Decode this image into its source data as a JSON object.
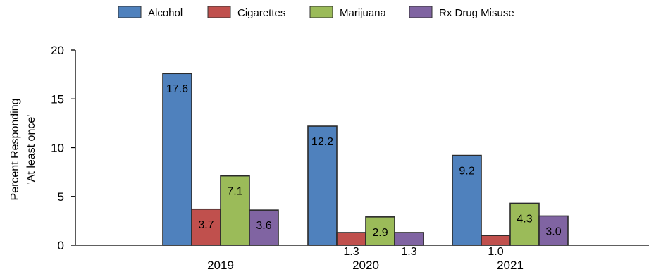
{
  "chart_data": {
    "type": "bar",
    "title": "",
    "xlabel": "",
    "ylabel_lines": [
      "Percent Responding",
      "'At least once'"
    ],
    "categories": [
      "2019",
      "2020",
      "2021"
    ],
    "ylim": [
      0,
      20
    ],
    "yticks": [
      "0",
      "5",
      "10",
      "15",
      "20"
    ],
    "grid": false,
    "legend_position": "top-center",
    "series": [
      {
        "name": "Alcohol",
        "color": "#4F81BD",
        "values": [
          17.6,
          12.2,
          9.2
        ],
        "labels": [
          "17.6",
          "12.2",
          "9.2"
        ]
      },
      {
        "name": "Cigarettes",
        "color": "#C0504D",
        "values": [
          3.7,
          1.3,
          1.0
        ],
        "labels": [
          "3.7",
          "1.3",
          "1.0"
        ]
      },
      {
        "name": "Marijuana",
        "color": "#9BBB59",
        "values": [
          7.1,
          2.9,
          4.3
        ],
        "labels": [
          "7.1",
          "2.9",
          "4.3"
        ]
      },
      {
        "name": "Rx Drug Misuse",
        "color": "#8064A2",
        "values": [
          3.6,
          1.3,
          3.0
        ],
        "labels": [
          "3.6",
          "1.3",
          "3.0"
        ]
      }
    ]
  }
}
